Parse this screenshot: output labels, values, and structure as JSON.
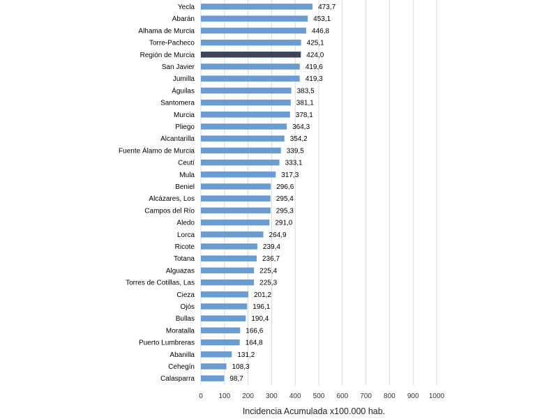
{
  "chart_data": {
    "type": "bar",
    "orientation": "horizontal",
    "categories": [
      "Yecla",
      "Abarán",
      "Alhama de Murcia",
      "Torre-Pacheco",
      "Región de Murcia",
      "San Javier",
      "Jumilla",
      "Águilas",
      "Santomera",
      "Murcia",
      "Pliego",
      "Alcantarilla",
      "Fuente Álamo de Murcia",
      "Ceutí",
      "Mula",
      "Beniel",
      "Alcázares, Los",
      "Campos del Río",
      "Aledo",
      "Lorca",
      "Ricote",
      "Totana",
      "Alguazas",
      "Torres de Cotillas, Las",
      "Cieza",
      "Ojós",
      "Bullas",
      "Moratalla",
      "Puerto Lumbreras",
      "Abanilla",
      "Cehegín",
      "Calasparra"
    ],
    "values": [
      473.7,
      453.1,
      446.8,
      425.1,
      424.0,
      419.6,
      419.3,
      383.5,
      381.1,
      378.1,
      364.3,
      354.2,
      339.5,
      333.1,
      317.3,
      296.6,
      295.4,
      295.3,
      291.0,
      264.9,
      239.4,
      236.7,
      225.4,
      225.3,
      201.2,
      196.1,
      190.4,
      166.6,
      164.8,
      131.2,
      108.3,
      98.7
    ],
    "value_labels": [
      "473,7",
      "453,1",
      "446,8",
      "425,1",
      "424,0",
      "419,6",
      "419,3",
      "383,5",
      "381,1",
      "378,1",
      "364,3",
      "354,2",
      "339,5",
      "333,1",
      "317,3",
      "296,6",
      "295,4",
      "295,3",
      "291,0",
      "264,9",
      "239,4",
      "236,7",
      "225,4",
      "225,3",
      "201,2",
      "196,1",
      "190,4",
      "166,6",
      "164,8",
      "131,2",
      "108,3",
      "98,7"
    ],
    "highlight_category": "Región de Murcia",
    "xlabel": "Incidencia Acumulada x100.000 hab.",
    "xlim": [
      0,
      1000
    ],
    "xticks": [
      0,
      100,
      200,
      300,
      400,
      500,
      600,
      700,
      800,
      900,
      1000
    ],
    "grid": "vertical",
    "colors": {
      "bar": "#6a9bd1",
      "highlight": "#3b4556"
    }
  }
}
